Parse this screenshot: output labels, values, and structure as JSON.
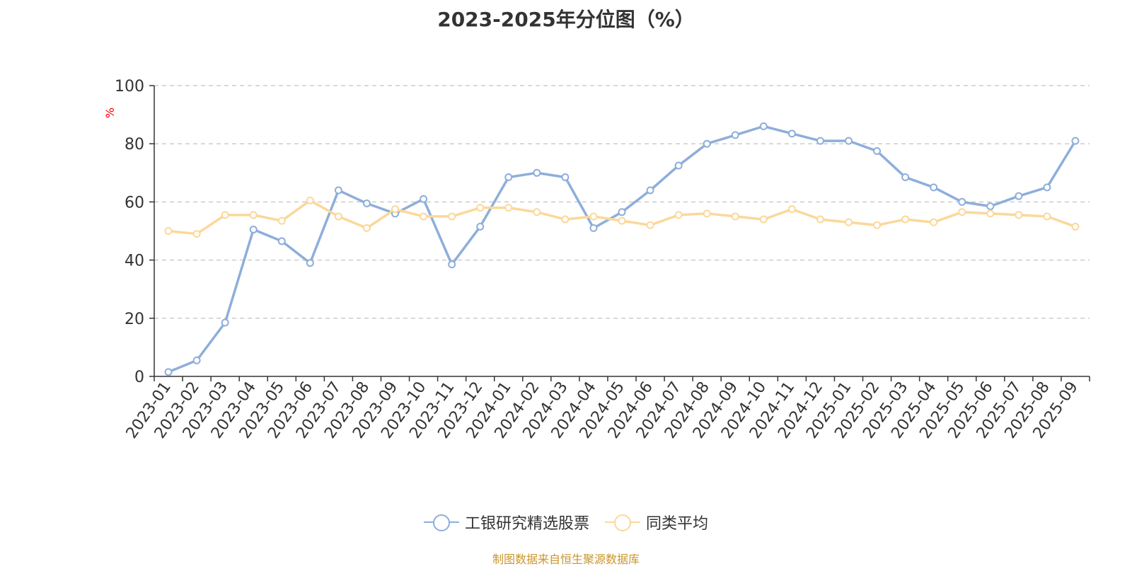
{
  "chart_data": {
    "type": "line",
    "title": "2023-2025年分位图（%）",
    "ylabel": "%",
    "xlabel": "",
    "ylim": [
      0,
      100
    ],
    "yticks": [
      0,
      20,
      40,
      60,
      80,
      100
    ],
    "grid": true,
    "legend_position": "bottom",
    "categories": [
      "2023-01",
      "2023-02",
      "2023-03",
      "2023-04",
      "2023-05",
      "2023-06",
      "2023-07",
      "2023-08",
      "2023-09",
      "2023-10",
      "2023-11",
      "2023-12",
      "2024-01",
      "2024-02",
      "2024-03",
      "2024-04",
      "2024-05",
      "2024-06",
      "2024-07",
      "2024-08",
      "2024-09",
      "2024-10",
      "2024-11",
      "2024-12",
      "2025-01",
      "2025-02",
      "2025-03",
      "2025-04",
      "2025-05",
      "2025-06",
      "2025-07",
      "2025-08",
      "2025-09"
    ],
    "series": [
      {
        "name": "工银研究精选股票",
        "color": "#8eaedb",
        "values": [
          1.5,
          5.5,
          18.5,
          50.5,
          46.5,
          39,
          64,
          59.5,
          56,
          61,
          38.5,
          51.5,
          68.5,
          70,
          68.5,
          51,
          56.5,
          64,
          72.5,
          80,
          83,
          86,
          83.5,
          81,
          81,
          77.5,
          68.5,
          65,
          60,
          58.5,
          62,
          65,
          81
        ]
      },
      {
        "name": "同类平均",
        "color": "#fbd89a",
        "values": [
          50,
          49,
          55.5,
          55.5,
          53.5,
          60.5,
          55,
          51,
          57.5,
          55,
          55,
          58,
          58,
          56.5,
          54,
          55,
          53.5,
          52,
          55.5,
          56,
          55,
          54,
          57.5,
          54,
          53,
          52,
          54,
          53,
          56.5,
          56,
          55.5,
          55,
          51.5
        ]
      }
    ],
    "source": "制图数据来自恒生聚源数据库"
  }
}
